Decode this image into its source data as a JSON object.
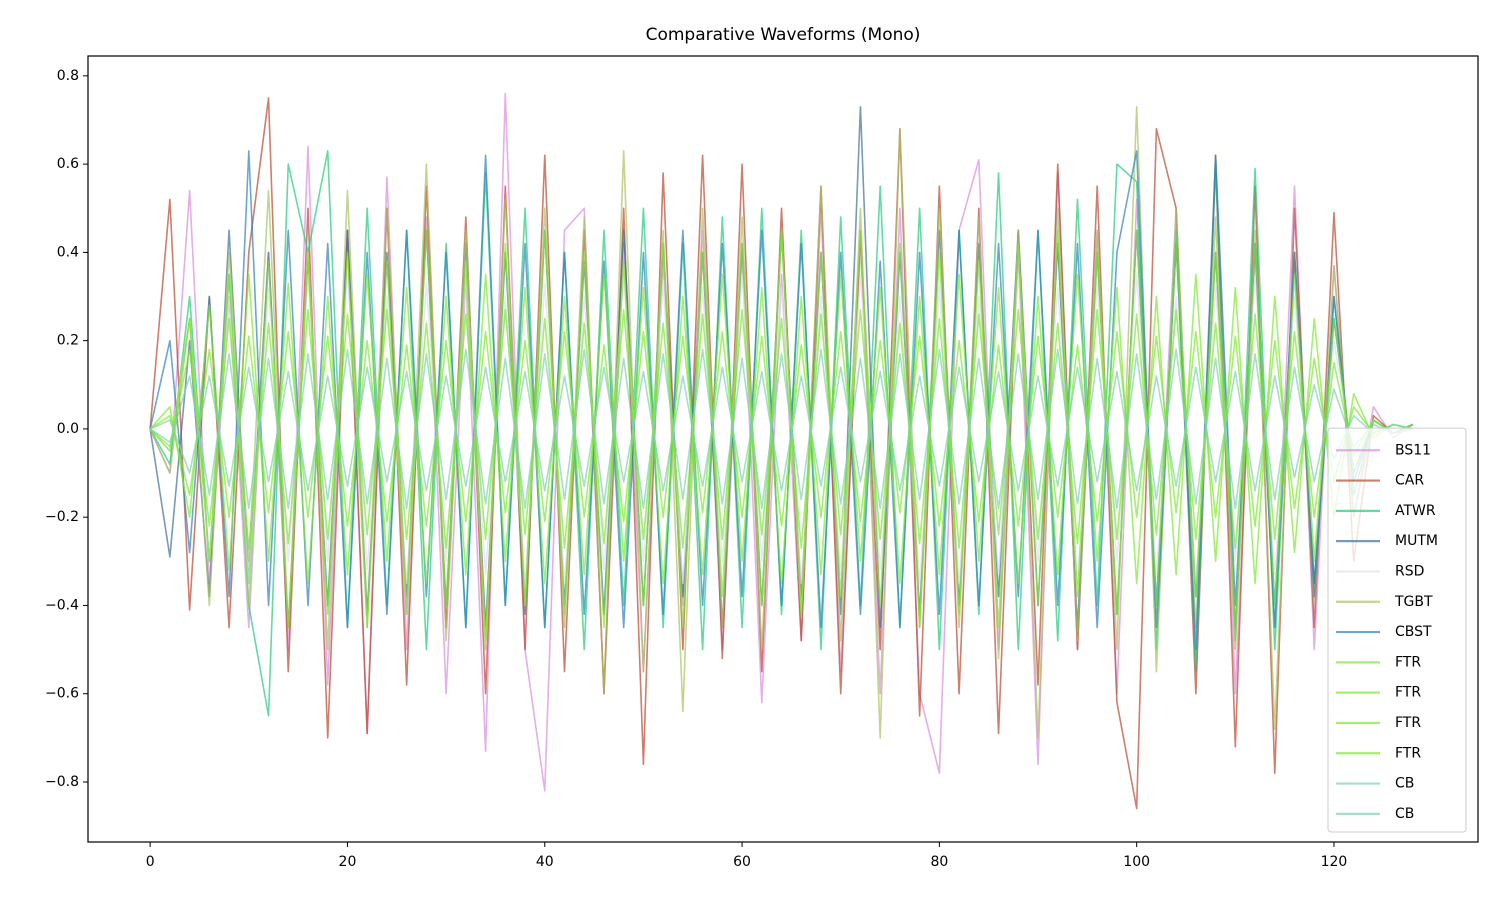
{
  "chart_data": {
    "type": "line",
    "title": "Comparative Waveforms (Mono)",
    "x": [
      0,
      2,
      4,
      6,
      8,
      10,
      12,
      14,
      16,
      18,
      20,
      22,
      24,
      26,
      28,
      30,
      32,
      34,
      36,
      38,
      40,
      42,
      44,
      46,
      48,
      50,
      52,
      54,
      56,
      58,
      60,
      62,
      64,
      66,
      68,
      70,
      72,
      74,
      76,
      78,
      80,
      82,
      84,
      86,
      88,
      90,
      92,
      94,
      96,
      98,
      100,
      102,
      104,
      106,
      108,
      110,
      112,
      114,
      116,
      118,
      120,
      122,
      124,
      126,
      128
    ],
    "xlim": [
      -6.3,
      134.6
    ],
    "xticks": [
      0,
      20,
      40,
      60,
      80,
      100,
      120
    ],
    "ylim": [
      -0.936,
      0.845
    ],
    "yticks": [
      {
        "value": -0.8,
        "label": "−0.8"
      },
      {
        "value": -0.6,
        "label": "−0.6"
      },
      {
        "value": -0.4,
        "label": "−0.4"
      },
      {
        "value": -0.2,
        "label": "−0.2"
      },
      {
        "value": 0,
        "label": "0.0"
      },
      0.2,
      0.4,
      0.6,
      0.8
    ],
    "legend": "lower right",
    "alpha": 0.7,
    "series": [
      {
        "name": "BS11",
        "color": "#d98be0",
        "values": [
          0,
          -0.1,
          0.54,
          -0.35,
          0.3,
          -0.45,
          0.4,
          -0.5,
          0.64,
          -0.58,
          0.45,
          -0.69,
          0.57,
          -0.5,
          0.48,
          -0.6,
          0.35,
          -0.73,
          0.76,
          -0.5,
          -0.82,
          0.45,
          0.5,
          -0.6,
          0.42,
          -0.55,
          0.38,
          -0.4,
          0.45,
          -0.5,
          0.4,
          -0.62,
          0.35,
          -0.48,
          0.5,
          -0.55,
          0.42,
          -0.6,
          0.5,
          -0.6,
          -0.78,
          0.45,
          0.61,
          -0.5,
          0.4,
          -0.76,
          0.58,
          -0.5,
          0.45,
          -0.6,
          0.52,
          -0.4,
          0.5,
          -0.55,
          0.59,
          -0.6,
          0.4,
          -0.45,
          0.55,
          -0.5,
          0.37,
          -0.2,
          0.05,
          -0.02,
          0.01
        ]
      },
      {
        "name": "CAR",
        "color": "#b8472e",
        "values": [
          0,
          0.52,
          -0.41,
          0.3,
          -0.45,
          0.4,
          0.75,
          -0.55,
          0.5,
          -0.7,
          0.45,
          -0.69,
          0.5,
          -0.58,
          0.55,
          -0.45,
          0.48,
          -0.6,
          0.55,
          -0.5,
          0.62,
          -0.55,
          0.45,
          -0.6,
          0.5,
          -0.76,
          0.58,
          -0.5,
          0.62,
          -0.52,
          0.6,
          -0.55,
          0.5,
          -0.48,
          0.55,
          -0.6,
          0.45,
          -0.5,
          0.68,
          -0.65,
          0.55,
          -0.6,
          0.5,
          -0.69,
          0.45,
          -0.58,
          0.6,
          -0.5,
          0.55,
          -0.62,
          -0.86,
          0.68,
          0.5,
          -0.6,
          0.62,
          -0.72,
          0.55,
          -0.78,
          0.5,
          -0.45,
          0.49,
          -0.3,
          0.03,
          -0.01,
          0.01
        ]
      },
      {
        "name": "ATWR",
        "color": "#1fcc7a",
        "values": [
          0,
          -0.08,
          0.3,
          -0.3,
          0.35,
          -0.4,
          -0.65,
          0.6,
          0.4,
          0.63,
          -0.45,
          0.5,
          -0.4,
          0.45,
          -0.5,
          0.42,
          -0.45,
          0.58,
          -0.4,
          0.5,
          -0.45,
          0.4,
          -0.5,
          0.45,
          -0.4,
          0.5,
          -0.45,
          0.42,
          -0.5,
          0.48,
          -0.45,
          0.5,
          -0.42,
          0.45,
          -0.5,
          0.48,
          -0.4,
          0.55,
          -0.45,
          0.5,
          -0.5,
          0.45,
          -0.42,
          0.58,
          -0.5,
          0.45,
          -0.48,
          0.52,
          -0.4,
          0.6,
          0.56,
          -0.5,
          0.45,
          -0.55,
          0.6,
          -0.48,
          0.59,
          -0.5,
          0.4,
          -0.35,
          0.3,
          -0.15,
          0.02,
          -0.01,
          0.01
        ]
      },
      {
        "name": "MUTM",
        "color": "#3f6f96",
        "values": [
          0,
          -0.29,
          0.2,
          -0.38,
          0.45,
          -0.35,
          0.4,
          -0.45,
          0.38,
          -0.4,
          0.45,
          -0.42,
          0.4,
          -0.38,
          0.45,
          -0.4,
          0.42,
          -0.45,
          0.4,
          -0.42,
          0.45,
          -0.4,
          0.38,
          -0.42,
          0.45,
          -0.4,
          0.42,
          -0.38,
          0.4,
          -0.45,
          0.42,
          -0.4,
          0.45,
          -0.38,
          0.4,
          -0.42,
          0.73,
          -0.45,
          0.4,
          -0.42,
          0.45,
          -0.4,
          0.42,
          -0.38,
          0.45,
          -0.4,
          0.42,
          -0.45,
          0.4,
          -0.42,
          0.45,
          -0.4,
          0.42,
          -0.38,
          0.4,
          -0.45,
          0.42,
          -0.4,
          0.38,
          -0.35,
          0.25,
          -0.1,
          0.02,
          -0.01,
          0.01
        ]
      },
      {
        "name": "RSD",
        "color": "#e3dcf3",
        "values": [
          0,
          -0.05,
          0.25,
          -0.3,
          0.3,
          -0.35,
          0.32,
          -0.3,
          0.35,
          -0.3,
          0.35,
          -0.32,
          0.3,
          -0.35,
          0.33,
          -0.3,
          0.35,
          -0.33,
          0.3,
          -0.35,
          0.33,
          -0.35,
          0.3,
          -0.32,
          0.35,
          -0.3,
          0.33,
          -0.35,
          0.32,
          -0.3,
          0.35,
          -0.3,
          0.32,
          -0.35,
          0.3,
          -0.33,
          0.35,
          -0.32,
          0.3,
          -0.35,
          0.32,
          -0.35,
          0.3,
          -0.33,
          0.35,
          -0.3,
          0.32,
          -0.35,
          0.33,
          -0.3,
          0.35,
          -0.33,
          0.3,
          -0.35,
          0.32,
          -0.3,
          0.35,
          -0.33,
          0.3,
          -0.28,
          0.2,
          -0.08,
          0.02,
          -0.01,
          0.01
        ]
      },
      {
        "name": "TGBT",
        "color": "#a9c25f",
        "values": [
          0,
          -0.1,
          0.25,
          -0.4,
          0.4,
          -0.3,
          0.54,
          -0.45,
          0.4,
          -0.5,
          0.54,
          -0.45,
          0.5,
          -0.42,
          0.6,
          -0.48,
          0.45,
          -0.5,
          0.52,
          -0.4,
          0.5,
          -0.45,
          0.48,
          -0.6,
          0.63,
          -0.55,
          0.45,
          -0.64,
          0.5,
          -0.45,
          0.48,
          -0.5,
          0.45,
          -0.42,
          0.55,
          -0.48,
          0.5,
          -0.7,
          0.68,
          -0.45,
          0.5,
          -0.45,
          0.48,
          -0.52,
          0.45,
          -0.7,
          0.5,
          -0.48,
          0.45,
          -0.5,
          0.73,
          -0.55,
          0.5,
          -0.45,
          0.48,
          -0.5,
          0.45,
          -0.68,
          0.4,
          -0.4,
          0.37,
          -0.2,
          0.02,
          -0.01,
          0.01
        ]
      },
      {
        "name": "CBST",
        "color": "#2f7fbf",
        "values": [
          0,
          0.2,
          -0.28,
          0.3,
          -0.38,
          0.63,
          -0.4,
          0.45,
          -0.4,
          0.42,
          -0.45,
          0.4,
          -0.42,
          0.45,
          -0.38,
          0.4,
          -0.45,
          0.62,
          -0.4,
          0.42,
          -0.45,
          0.4,
          -0.42,
          0.38,
          -0.45,
          0.4,
          -0.42,
          0.45,
          -0.4,
          0.42,
          -0.38,
          0.45,
          -0.4,
          0.42,
          -0.45,
          0.4,
          -0.42,
          0.38,
          -0.45,
          0.4,
          -0.42,
          0.45,
          -0.4,
          0.42,
          -0.38,
          0.45,
          -0.4,
          0.42,
          -0.45,
          0.4,
          0.63,
          -0.45,
          0.42,
          -0.5,
          0.62,
          -0.4,
          0.42,
          -0.45,
          0.4,
          -0.38,
          0.3,
          -0.12,
          0.02,
          -0.01,
          0.01
        ]
      },
      {
        "name": "FTR",
        "color": "#7ee831",
        "values": [
          0,
          -0.05,
          0.25,
          -0.3,
          0.35,
          -0.4,
          0.38,
          -0.45,
          0.4,
          -0.42,
          0.4,
          -0.45,
          0.38,
          -0.42,
          0.45,
          -0.4,
          0.38,
          -0.48,
          0.42,
          -0.4,
          0.45,
          -0.42,
          0.4,
          -0.45,
          0.38,
          -0.4,
          0.42,
          -0.45,
          0.4,
          -0.38,
          0.42,
          -0.4,
          0.45,
          -0.42,
          0.4,
          -0.38,
          0.45,
          -0.4,
          0.42,
          -0.45,
          0.4,
          -0.42,
          0.38,
          -0.45,
          0.42,
          -0.4,
          0.45,
          -0.38,
          0.4,
          -0.42,
          0.45,
          -0.4,
          0.42,
          -0.38,
          0.4,
          -0.45,
          0.42,
          -0.4,
          0.35,
          -0.3,
          0.25,
          -0.1,
          0.02,
          -0.01,
          0.01
        ]
      },
      {
        "name": "FTR",
        "color": "#7ee831",
        "values": [
          0,
          0.05,
          -0.2,
          0.28,
          -0.32,
          0.35,
          -0.3,
          0.33,
          -0.35,
          0.3,
          -0.33,
          0.35,
          -0.3,
          0.32,
          -0.35,
          0.3,
          -0.33,
          0.35,
          -0.3,
          0.32,
          -0.35,
          0.3,
          -0.33,
          0.35,
          -0.3,
          0.32,
          -0.35,
          0.3,
          -0.33,
          0.35,
          -0.3,
          0.32,
          -0.35,
          0.3,
          -0.33,
          0.35,
          -0.3,
          0.32,
          -0.35,
          0.3,
          -0.33,
          0.35,
          -0.3,
          0.32,
          -0.35,
          0.3,
          -0.33,
          0.35,
          -0.3,
          0.32,
          -0.35,
          0.3,
          -0.33,
          0.35,
          -0.3,
          0.32,
          -0.35,
          0.3,
          -0.28,
          0.25,
          -0.2,
          0.08,
          -0.02,
          0.01,
          0
        ]
      },
      {
        "name": "FTR",
        "color": "#7ee831",
        "values": [
          0,
          -0.04,
          0.18,
          -0.22,
          0.25,
          -0.27,
          0.24,
          -0.26,
          0.27,
          -0.25,
          0.26,
          -0.24,
          0.27,
          -0.25,
          0.24,
          -0.27,
          0.26,
          -0.25,
          0.27,
          -0.24,
          0.25,
          -0.27,
          0.24,
          -0.26,
          0.27,
          -0.25,
          0.24,
          -0.27,
          0.26,
          -0.25,
          0.27,
          -0.24,
          0.25,
          -0.27,
          0.26,
          -0.24,
          0.27,
          -0.25,
          0.24,
          -0.26,
          0.25,
          -0.27,
          0.26,
          -0.24,
          0.27,
          -0.25,
          0.24,
          -0.26,
          0.27,
          -0.25,
          0.26,
          -0.24,
          0.27,
          -0.25,
          0.24,
          -0.27,
          0.26,
          -0.25,
          0.22,
          -0.2,
          0.15,
          -0.06,
          0.02,
          -0.01,
          0
        ]
      },
      {
        "name": "FTR",
        "color": "#7ee831",
        "values": [
          0,
          0.03,
          -0.15,
          0.18,
          -0.2,
          0.21,
          -0.19,
          0.22,
          -0.2,
          0.21,
          -0.22,
          0.2,
          -0.21,
          0.19,
          -0.22,
          0.2,
          -0.21,
          0.22,
          -0.19,
          0.2,
          -0.21,
          0.22,
          -0.2,
          0.19,
          -0.21,
          0.22,
          -0.2,
          0.21,
          -0.19,
          0.22,
          -0.2,
          0.21,
          -0.22,
          0.19,
          -0.2,
          0.22,
          -0.21,
          0.2,
          -0.19,
          0.21,
          -0.22,
          0.2,
          -0.21,
          0.19,
          -0.22,
          0.21,
          -0.2,
          0.19,
          -0.21,
          0.22,
          -0.2,
          0.21,
          -0.19,
          0.22,
          -0.2,
          0.21,
          -0.22,
          0.2,
          -0.18,
          0.16,
          -0.12,
          0.05,
          -0.01,
          0.01,
          0
        ]
      },
      {
        "name": "CB",
        "color": "#7fd1b0",
        "values": [
          0,
          -0.03,
          0.12,
          -0.15,
          0.17,
          -0.18,
          0.16,
          -0.18,
          0.17,
          -0.16,
          0.18,
          -0.17,
          0.16,
          -0.18,
          0.17,
          -0.16,
          0.18,
          -0.17,
          0.16,
          -0.18,
          0.17,
          -0.16,
          0.18,
          -0.17,
          0.16,
          -0.18,
          0.17,
          -0.16,
          0.18,
          -0.17,
          0.16,
          -0.18,
          0.17,
          -0.16,
          0.18,
          -0.17,
          0.16,
          -0.18,
          0.17,
          -0.16,
          0.18,
          -0.17,
          0.16,
          -0.18,
          0.17,
          -0.16,
          0.18,
          -0.17,
          0.16,
          -0.18,
          0.17,
          -0.16,
          0.18,
          -0.17,
          0.16,
          -0.18,
          0.17,
          -0.16,
          0.14,
          -0.12,
          0.09,
          -0.04,
          0.01,
          -0.01,
          0
        ]
      },
      {
        "name": "CB",
        "color": "#7fd1b0",
        "values": [
          0,
          0.02,
          -0.1,
          0.12,
          -0.13,
          0.14,
          -0.12,
          0.13,
          -0.14,
          0.12,
          -0.13,
          0.14,
          -0.12,
          0.13,
          -0.14,
          0.12,
          -0.13,
          0.14,
          -0.12,
          0.13,
          -0.14,
          0.12,
          -0.13,
          0.14,
          -0.12,
          0.13,
          -0.14,
          0.12,
          -0.13,
          0.14,
          -0.12,
          0.13,
          -0.14,
          0.12,
          -0.13,
          0.14,
          -0.12,
          0.13,
          -0.14,
          0.12,
          -0.13,
          0.14,
          -0.12,
          0.13,
          -0.14,
          0.12,
          -0.13,
          0.14,
          -0.12,
          0.13,
          -0.14,
          0.12,
          -0.13,
          0.14,
          -0.12,
          0.13,
          -0.14,
          0.12,
          -0.11,
          0.1,
          -0.07,
          0.03,
          -0.01,
          0.01,
          0
        ]
      }
    ]
  }
}
